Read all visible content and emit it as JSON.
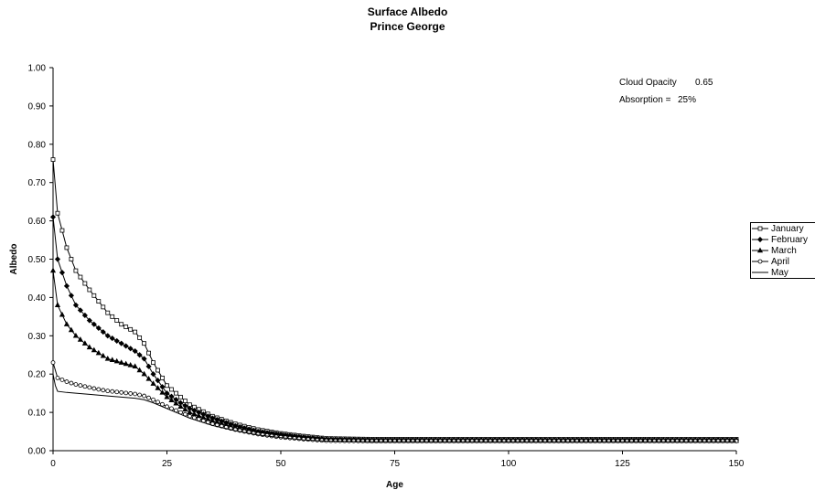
{
  "chart_data": {
    "type": "line",
    "title": "Surface Albedo",
    "subtitle": "Prince George",
    "xlabel": "Age",
    "ylabel": "Albedo",
    "xlim": [
      0,
      150
    ],
    "ylim": [
      0,
      1.0
    ],
    "xticks": [
      "0",
      "25",
      "50",
      "75",
      "100",
      "125",
      "150"
    ],
    "yticks": [
      "0.00",
      "0.10",
      "0.20",
      "0.30",
      "0.40",
      "0.50",
      "0.60",
      "0.70",
      "0.80",
      "0.90",
      "1.00"
    ],
    "grid": false,
    "legend_position": "right",
    "annotations": [
      {
        "label": "Cloud Opacity",
        "value": "0.65"
      },
      {
        "label": "Absorption =",
        "value": "25%"
      }
    ],
    "series": [
      {
        "name": "January",
        "marker": "square",
        "x": [
          0,
          1,
          3,
          5,
          8,
          10,
          12,
          15,
          18,
          20,
          22,
          25,
          28,
          30,
          35,
          40,
          45,
          50,
          55,
          60,
          70,
          80,
          100,
          125,
          150
        ],
        "values": [
          0.76,
          0.62,
          0.53,
          0.47,
          0.42,
          0.39,
          0.36,
          0.33,
          0.31,
          0.28,
          0.23,
          0.17,
          0.14,
          0.12,
          0.09,
          0.07,
          0.055,
          0.045,
          0.038,
          0.032,
          0.03,
          0.03,
          0.03,
          0.03,
          0.03
        ]
      },
      {
        "name": "February",
        "marker": "diamond",
        "x": [
          0,
          1,
          3,
          5,
          8,
          10,
          12,
          15,
          18,
          20,
          22,
          25,
          28,
          30,
          35,
          40,
          45,
          50,
          55,
          60,
          70,
          80,
          100,
          125,
          150
        ],
        "values": [
          0.61,
          0.5,
          0.43,
          0.38,
          0.34,
          0.32,
          0.3,
          0.28,
          0.26,
          0.24,
          0.2,
          0.15,
          0.125,
          0.11,
          0.085,
          0.065,
          0.05,
          0.042,
          0.035,
          0.03,
          0.028,
          0.028,
          0.028,
          0.028,
          0.028
        ]
      },
      {
        "name": "March",
        "marker": "triangle",
        "x": [
          0,
          1,
          3,
          5,
          8,
          10,
          12,
          15,
          18,
          20,
          22,
          25,
          28,
          30,
          35,
          40,
          45,
          50,
          55,
          60,
          70,
          80,
          100,
          125,
          150
        ],
        "values": [
          0.47,
          0.38,
          0.33,
          0.3,
          0.27,
          0.255,
          0.24,
          0.23,
          0.22,
          0.2,
          0.175,
          0.14,
          0.115,
          0.1,
          0.078,
          0.06,
          0.047,
          0.04,
          0.033,
          0.028,
          0.026,
          0.026,
          0.026,
          0.026,
          0.026
        ]
      },
      {
        "name": "April",
        "marker": "circle",
        "x": [
          0,
          1,
          3,
          5,
          8,
          10,
          12,
          15,
          18,
          20,
          22,
          25,
          28,
          30,
          35,
          40,
          45,
          50,
          55,
          60,
          70,
          80,
          100,
          125,
          150
        ],
        "values": [
          0.23,
          0.19,
          0.18,
          0.173,
          0.165,
          0.16,
          0.156,
          0.152,
          0.148,
          0.143,
          0.133,
          0.115,
          0.1,
          0.09,
          0.07,
          0.055,
          0.043,
          0.035,
          0.03,
          0.026,
          0.025,
          0.025,
          0.025,
          0.025,
          0.025
        ]
      },
      {
        "name": "May",
        "marker": "none",
        "x": [
          0,
          0.5,
          1,
          3,
          5,
          8,
          10,
          12,
          15,
          18,
          20,
          22,
          25,
          28,
          30,
          35,
          40,
          45,
          50,
          55,
          60,
          70,
          80,
          100,
          125,
          150
        ],
        "values": [
          0.2,
          0.17,
          0.155,
          0.152,
          0.15,
          0.147,
          0.145,
          0.143,
          0.14,
          0.137,
          0.133,
          0.125,
          0.11,
          0.095,
          0.085,
          0.066,
          0.052,
          0.041,
          0.034,
          0.028,
          0.025,
          0.024,
          0.024,
          0.024,
          0.024,
          0.024
        ]
      }
    ]
  }
}
